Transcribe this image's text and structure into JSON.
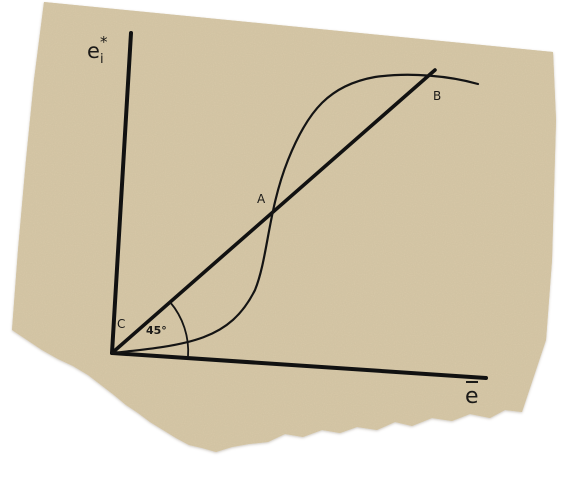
{
  "diagram": {
    "y_axis_label": "e",
    "y_axis_superscript": "*",
    "y_axis_subscript": "i",
    "x_axis_label": "e",
    "x_axis_overbar": true,
    "point_a_label": "A",
    "point_b_label": "B",
    "point_c_label": "C",
    "angle_label": "45°",
    "colors": {
      "paper": "#d8c9a8",
      "paper_shadow": "#b6a684",
      "ink": "#111111"
    }
  }
}
